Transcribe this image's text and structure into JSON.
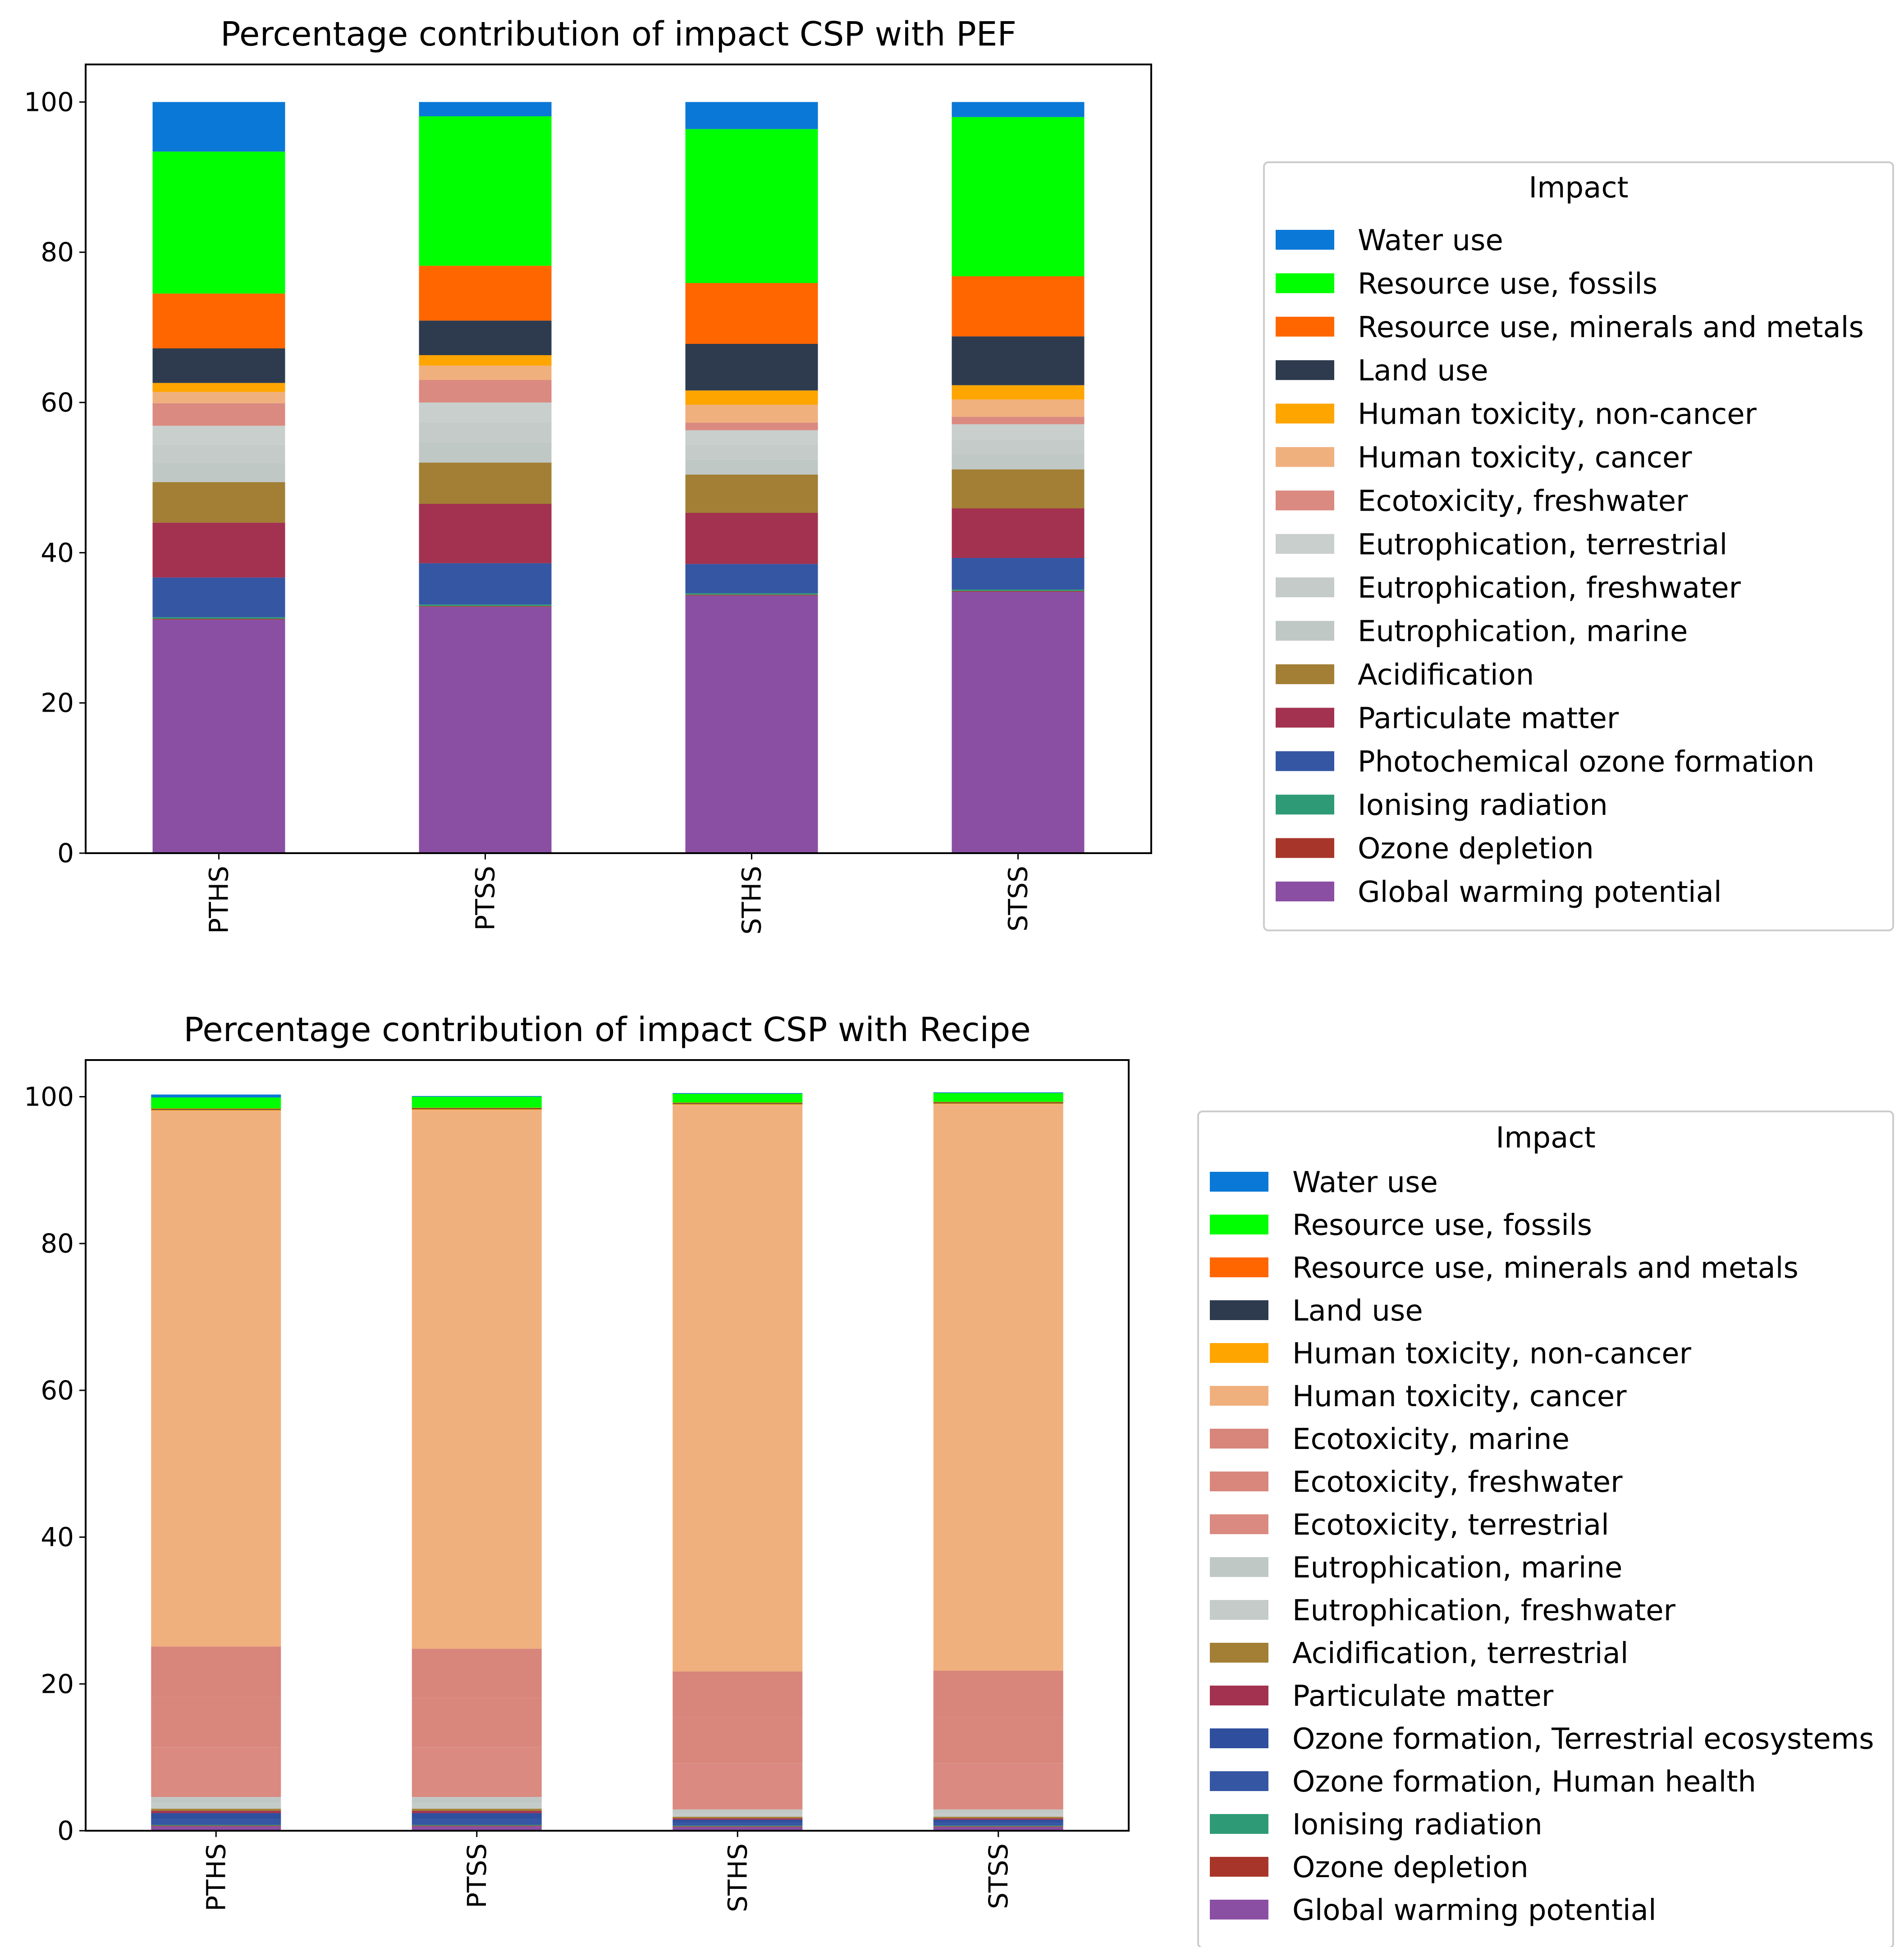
{
  "chart_data": [
    {
      "type": "bar",
      "stacked": true,
      "title": "Percentage contribution of impact CSP with PEF",
      "xlabel": "",
      "ylabel": "",
      "ylim": [
        0,
        105
      ],
      "yticks": [
        0,
        20,
        40,
        60,
        80,
        100
      ],
      "categories": [
        "PTHS",
        "PTSS",
        "STHS",
        "STSS"
      ],
      "legend": {
        "title": "Impact",
        "placement": "right"
      },
      "series": [
        {
          "name": "Global warming potential",
          "color": "#8A4FA3",
          "values": [
            31.1,
            32.8,
            34.3,
            34.8
          ]
        },
        {
          "name": "Ozone depletion",
          "color": "#A8352A",
          "values": [
            0.1,
            0.1,
            0.1,
            0.1
          ]
        },
        {
          "name": "Ionising radiation",
          "color": "#2E9B76",
          "values": [
            0.2,
            0.2,
            0.2,
            0.2
          ]
        },
        {
          "name": "Photochemical ozone formation",
          "color": "#3556A3",
          "values": [
            5.3,
            5.5,
            3.9,
            4.2
          ]
        },
        {
          "name": "Particulate matter",
          "color": "#A23250",
          "values": [
            7.3,
            7.9,
            6.8,
            6.6
          ]
        },
        {
          "name": "Acidification",
          "color": "#A27F35",
          "values": [
            5.4,
            5.5,
            5.1,
            5.2
          ]
        },
        {
          "name": "Eutrophication, marine",
          "color": "#C0C8C6",
          "values": [
            2.5,
            2.7,
            2.0,
            2.0
          ]
        },
        {
          "name": "Eutrophication, freshwater",
          "color": "#C4CBC9",
          "values": [
            2.5,
            2.7,
            2.0,
            2.0
          ]
        },
        {
          "name": "Eutrophication, terrestrial",
          "color": "#C8CFCD",
          "values": [
            2.5,
            2.6,
            1.9,
            2.0
          ]
        },
        {
          "name": "Ecotoxicity, freshwater",
          "color": "#DA8A80",
          "values": [
            3.0,
            3.0,
            1.0,
            1.0
          ]
        },
        {
          "name": "Human toxicity, cancer",
          "color": "#F0B07E",
          "values": [
            1.5,
            1.9,
            2.4,
            2.3
          ]
        },
        {
          "name": "Human toxicity, non-cancer",
          "color": "#FFA500",
          "values": [
            1.2,
            1.4,
            1.9,
            1.9
          ]
        },
        {
          "name": "Land use",
          "color": "#2E3B4E",
          "values": [
            4.6,
            4.6,
            6.2,
            6.5
          ]
        },
        {
          "name": "Resource use, minerals and metals",
          "color": "#FF6600",
          "values": [
            7.3,
            7.3,
            8.1,
            8.0
          ]
        },
        {
          "name": "Resource use, fossils",
          "color": "#00FF00",
          "values": [
            18.9,
            19.9,
            20.5,
            21.2
          ]
        },
        {
          "name": "Water use",
          "color": "#0A78D6",
          "values": [
            6.6,
            1.9,
            3.6,
            2.0
          ]
        }
      ]
    },
    {
      "type": "bar",
      "stacked": true,
      "title": "Percentage contribution of impact CSP with Recipe",
      "xlabel": "",
      "ylabel": "",
      "ylim": [
        0,
        105
      ],
      "yticks": [
        0,
        20,
        40,
        60,
        80,
        100
      ],
      "categories": [
        "PTHS",
        "PTSS",
        "STHS",
        "STSS"
      ],
      "legend": {
        "title": "Impact",
        "placement": "right"
      },
      "series": [
        {
          "name": "Global warming potential",
          "color": "#8A4FA3",
          "values": [
            0.6,
            0.6,
            0.5,
            0.5
          ]
        },
        {
          "name": "Ozone depletion",
          "color": "#A8352A",
          "values": [
            0.1,
            0.1,
            0.1,
            0.1
          ]
        },
        {
          "name": "Ionising radiation",
          "color": "#2E9B76",
          "values": [
            0.1,
            0.1,
            0.1,
            0.1
          ]
        },
        {
          "name": "Ozone formation, Human health",
          "color": "#3556A3",
          "values": [
            0.8,
            0.8,
            0.4,
            0.4
          ]
        },
        {
          "name": "Ozone formation, Terrestrial ecosystems",
          "color": "#2F4F9E",
          "values": [
            0.8,
            0.8,
            0.4,
            0.4
          ]
        },
        {
          "name": "Particulate matter",
          "color": "#A23250",
          "values": [
            0.3,
            0.3,
            0.2,
            0.2
          ]
        },
        {
          "name": "Acidification, terrestrial",
          "color": "#A27F35",
          "values": [
            0.3,
            0.3,
            0.2,
            0.2
          ]
        },
        {
          "name": "Eutrophication, freshwater",
          "color": "#C4CBC9",
          "values": [
            0.8,
            0.8,
            0.5,
            0.5
          ]
        },
        {
          "name": "Eutrophication, marine",
          "color": "#C0C8C6",
          "values": [
            0.8,
            0.8,
            0.5,
            0.5
          ]
        },
        {
          "name": "Ecotoxicity, terrestrial",
          "color": "#DA8A80",
          "values": [
            6.8,
            6.8,
            6.3,
            6.3
          ]
        },
        {
          "name": "Ecotoxicity, freshwater",
          "color": "#D9877D",
          "values": [
            6.8,
            6.7,
            6.3,
            6.3
          ]
        },
        {
          "name": "Ecotoxicity, marine",
          "color": "#D8857B",
          "values": [
            6.9,
            6.7,
            6.2,
            6.3
          ]
        },
        {
          "name": "Human toxicity, cancer",
          "color": "#F0B07E",
          "values": [
            73.0,
            73.4,
            77.2,
            77.2
          ]
        },
        {
          "name": "Human toxicity, non-cancer",
          "color": "#FFA500",
          "values": [
            0.1,
            0.1,
            0.1,
            0.1
          ]
        },
        {
          "name": "Land use",
          "color": "#2E3B4E",
          "values": [
            0.1,
            0.1,
            0.1,
            0.1
          ]
        },
        {
          "name": "Resource use, minerals and metals",
          "color": "#FF6600",
          "values": [
            0.1,
            0.1,
            0.1,
            0.1
          ]
        },
        {
          "name": "Resource use, fossils",
          "color": "#00FF00",
          "values": [
            1.5,
            1.5,
            1.2,
            1.2
          ]
        },
        {
          "name": "Water use",
          "color": "#0A78D6",
          "values": [
            0.4,
            0.1,
            0.1,
            0.1
          ]
        }
      ],
      "legend_order": [
        "Water use",
        "Resource use, fossils",
        "Resource use, minerals and metals",
        "Land use",
        "Human toxicity, non-cancer",
        "Human toxicity, cancer",
        "Ecotoxicity, marine",
        "Ecotoxicity, freshwater",
        "Ecotoxicity, terrestrial",
        "Eutrophication, marine",
        "Eutrophication, freshwater",
        "Acidification, terrestrial",
        "Particulate matter",
        "Ozone formation, Terrestrial ecosystems",
        "Ozone formation, Human health",
        "Ionising radiation",
        "Ozone depletion",
        "Global warming potential"
      ]
    }
  ]
}
